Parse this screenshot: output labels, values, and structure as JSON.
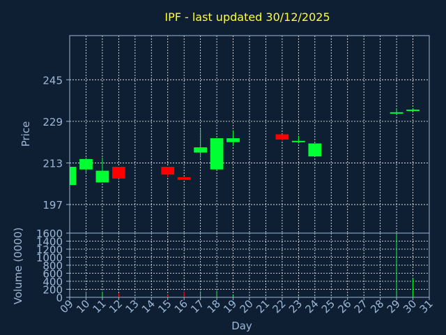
{
  "chart_data": [
    {
      "type": "candlestick",
      "title": "IPF - last updated 30/12/2025",
      "ylabel": "Price",
      "ylim": [
        186,
        262
      ],
      "yticks": [
        197,
        213,
        229,
        245
      ],
      "grid": true,
      "colors": {
        "up": "#00ff33",
        "down": "#ff0000",
        "grid": "#ffffff",
        "axis": "#9db8d6",
        "title": "#ffff33",
        "background": "#0f1f33"
      },
      "candles": [
        {
          "day": "09",
          "open": 204.5,
          "high": 211.5,
          "low": 204.5,
          "close": 211.5
        },
        {
          "day": "10",
          "open": 210.5,
          "high": 215.0,
          "low": 209.0,
          "close": 214.5
        },
        {
          "day": "11",
          "open": 205.5,
          "high": 215.0,
          "low": 205.5,
          "close": 210.0
        },
        {
          "day": "12",
          "open": 211.5,
          "high": 211.5,
          "low": 207.0,
          "close": 207.0
        },
        {
          "day": "15",
          "open": 211.5,
          "high": 211.5,
          "low": 207.5,
          "close": 208.5
        },
        {
          "day": "16",
          "open": 207.5,
          "high": 207.5,
          "low": 206.5,
          "close": 206.5
        },
        {
          "day": "17",
          "open": 217.0,
          "high": 226.0,
          "low": 215.0,
          "close": 219.0
        },
        {
          "day": "18",
          "open": 210.5,
          "high": 222.5,
          "low": 210.5,
          "close": 222.5
        },
        {
          "day": "19",
          "open": 221.0,
          "high": 225.5,
          "low": 219.5,
          "close": 222.5
        },
        {
          "day": "22",
          "open": 224.0,
          "high": 224.0,
          "low": 221.5,
          "close": 222.0
        },
        {
          "day": "23",
          "open": 221.5,
          "high": 223.5,
          "low": 220.5,
          "close": 221.5
        },
        {
          "day": "24",
          "open": 215.5,
          "high": 220.5,
          "low": 215.5,
          "close": 220.5
        },
        {
          "day": "29",
          "open": 232.0,
          "high": 234.0,
          "low": 232.0,
          "close": 232.5
        },
        {
          "day": "30",
          "open": 233.0,
          "high": 234.0,
          "low": 233.0,
          "close": 233.5
        }
      ]
    },
    {
      "type": "bar",
      "xlabel": "Day",
      "ylabel": "Volume (0000)",
      "ylim": [
        0,
        1600
      ],
      "yticks": [
        0,
        200,
        400,
        600,
        800,
        1000,
        1200,
        1400,
        1600
      ],
      "categories": [
        "09",
        "10",
        "11",
        "12",
        "13",
        "14",
        "15",
        "16",
        "17",
        "18",
        "19",
        "20",
        "21",
        "22",
        "23",
        "24",
        "25",
        "26",
        "27",
        "28",
        "29",
        "30",
        "31"
      ],
      "values": [
        {
          "day": "09",
          "value": 5,
          "dir": "up"
        },
        {
          "day": "10",
          "value": 140,
          "dir": "up"
        },
        {
          "day": "11",
          "value": 140,
          "dir": "up"
        },
        {
          "day": "12",
          "value": 100,
          "dir": "down"
        },
        {
          "day": "15",
          "value": 60,
          "dir": "down"
        },
        {
          "day": "16",
          "value": 140,
          "dir": "down"
        },
        {
          "day": "17",
          "value": 150,
          "dir": "up"
        },
        {
          "day": "18",
          "value": 160,
          "dir": "up"
        },
        {
          "day": "19",
          "value": 50,
          "dir": "up"
        },
        {
          "day": "22",
          "value": 20,
          "dir": "down"
        },
        {
          "day": "23",
          "value": 20,
          "dir": "up"
        },
        {
          "day": "24",
          "value": 15,
          "dir": "up"
        },
        {
          "day": "29",
          "value": 1600,
          "dir": "up"
        },
        {
          "day": "30",
          "value": 470,
          "dir": "up"
        }
      ]
    }
  ]
}
